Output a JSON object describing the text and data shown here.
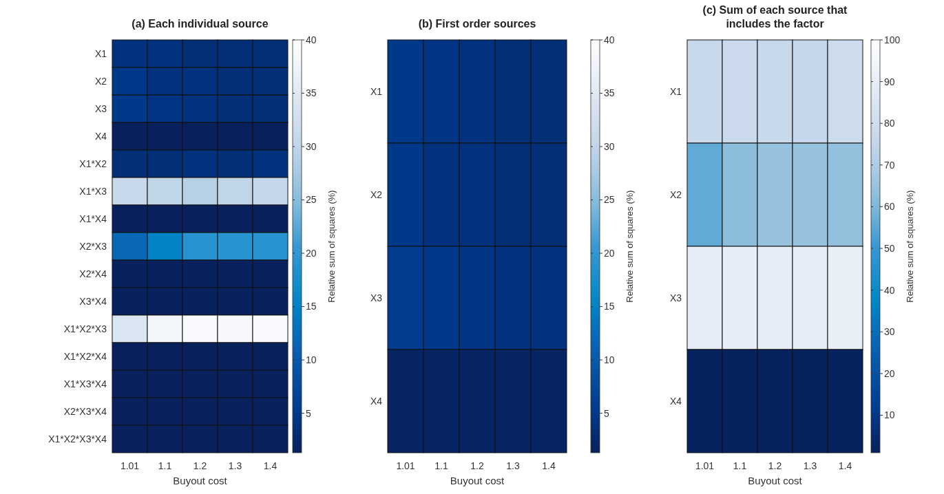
{
  "chart_data": [
    {
      "type": "heatmap",
      "title": "(a) Each individual source",
      "xlabel": "Buyout cost",
      "clabel": "Relative sum of squares (%)",
      "categories": [
        "1.01",
        "1.1",
        "1.2",
        "1.3",
        "1.4"
      ],
      "y_categories": [
        "X1",
        "X2",
        "X3",
        "X4",
        "X1*X2",
        "X1*X3",
        "X1*X4",
        "X2*X3",
        "X2*X4",
        "X3*X4",
        "X1*X2*X3",
        "X1*X2*X4",
        "X1*X3*X4",
        "X2*X3*X4",
        "X1*X2*X3*X4"
      ],
      "cells": [
        [
          4,
          4,
          3.5,
          3.5,
          3.5
        ],
        [
          5,
          4,
          4,
          3.5,
          3.5
        ],
        [
          5,
          4.5,
          4,
          3.5,
          3.5
        ],
        [
          1.5,
          1.5,
          1.5,
          1.5,
          1.5
        ],
        [
          3.5,
          3.5,
          4,
          3.5,
          4
        ],
        [
          31,
          30,
          29,
          30,
          30.5
        ],
        [
          1.5,
          1.5,
          1.5,
          1.5,
          1.5
        ],
        [
          12,
          15,
          19,
          19,
          19
        ],
        [
          1.6,
          1.6,
          1.6,
          1.6,
          1.6
        ],
        [
          1.6,
          1.6,
          1.6,
          1.6,
          1.6
        ],
        [
          34,
          38,
          39,
          38.5,
          39
        ],
        [
          1.5,
          1.5,
          1.5,
          1.5,
          1.5
        ],
        [
          1.5,
          1.5,
          1.5,
          1.5,
          1.5
        ],
        [
          1.5,
          1.5,
          1.5,
          1.5,
          1.5
        ],
        [
          1.5,
          1.5,
          1.5,
          1.5,
          1.5
        ]
      ],
      "clim": [
        1.3,
        40
      ],
      "cticks": [
        5,
        10,
        15,
        20,
        25,
        30,
        35,
        40
      ]
    },
    {
      "type": "heatmap",
      "title": "(b) First order sources",
      "xlabel": "Buyout cost",
      "clabel": "Relative sum of squares (%)",
      "categories": [
        "1.01",
        "1.1",
        "1.2",
        "1.3",
        "1.4"
      ],
      "y_categories": [
        "X1",
        "X2",
        "X3",
        "X4"
      ],
      "cells": [
        [
          5,
          4.5,
          4,
          3.5,
          3.5
        ],
        [
          5,
          4,
          4,
          3.5,
          3.5
        ],
        [
          5.5,
          5,
          4.5,
          4,
          4
        ],
        [
          2,
          2,
          2,
          2,
          2
        ]
      ],
      "clim": [
        1.3,
        40
      ],
      "cticks": [
        5,
        10,
        15,
        20,
        25,
        30,
        35,
        40
      ]
    },
    {
      "type": "heatmap",
      "title": "(c) Sum of each source that includes the factor",
      "xlabel": "Buyout cost",
      "clabel": "Relative sum of squares (%)",
      "categories": [
        "1.01",
        "1.1",
        "1.2",
        "1.3",
        "1.4"
      ],
      "y_categories": [
        "X1",
        "X2",
        "X3",
        "X4"
      ],
      "cells": [
        [
          77,
          78,
          77,
          76,
          79
        ],
        [
          56,
          62,
          64,
          64,
          63
        ],
        [
          89,
          90,
          90,
          90,
          91
        ],
        [
          2,
          2,
          2,
          2,
          2
        ]
      ],
      "clim": [
        1,
        100
      ],
      "cticks": [
        10,
        20,
        30,
        40,
        50,
        60,
        70,
        80,
        90,
        100
      ]
    }
  ]
}
